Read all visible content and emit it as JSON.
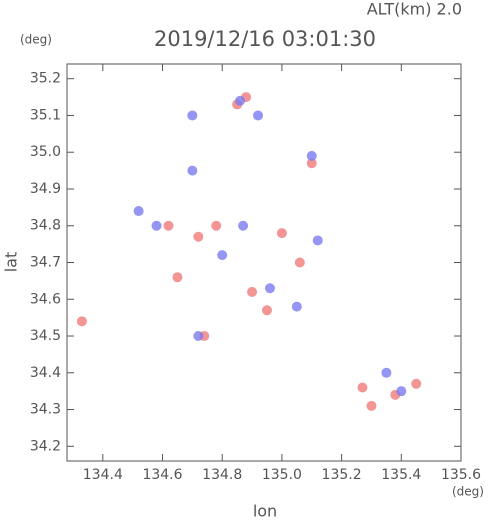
{
  "chart_data": {
    "type": "scatter",
    "title": "2019/12/16 03:01:30",
    "annotation": "ALT(km) 2.0",
    "y_unit": "(deg)",
    "x_unit": "(deg)",
    "xlabel": "lon",
    "ylabel": "lat",
    "xlim": [
      134.28,
      135.6
    ],
    "ylim": [
      34.16,
      35.24
    ],
    "xticks": [
      134.4,
      134.6,
      134.8,
      {
        "value": 135.0,
        "label": "135.0"
      },
      135.2,
      135.4,
      135.6
    ],
    "yticks": [
      34.2,
      34.3,
      34.4,
      34.5,
      34.6,
      34.7,
      34.8,
      34.9,
      {
        "value": 35.0,
        "label": "35.0"
      },
      35.1,
      35.2
    ],
    "series": [
      {
        "color": "#f07a7a",
        "x": [
          134.33,
          134.65,
          134.85,
          134.88,
          134.62,
          134.72,
          134.74,
          135.06,
          135.1,
          135.3,
          135.27,
          135.45,
          135.38,
          134.95,
          134.9,
          134.78,
          135.0
        ],
        "y": [
          34.54,
          34.66,
          35.13,
          35.15,
          34.8,
          34.77,
          34.5,
          34.7,
          34.97,
          34.31,
          34.36,
          34.37,
          34.34,
          34.57,
          34.62,
          34.8,
          34.78
        ]
      },
      {
        "color": "#7a7af0",
        "x": [
          134.52,
          134.7,
          134.86,
          134.92,
          135.1,
          134.58,
          134.8,
          134.96,
          135.05,
          134.72,
          135.35,
          135.4,
          134.87,
          135.12,
          134.7
        ],
        "y": [
          34.84,
          35.1,
          35.14,
          35.1,
          34.99,
          34.8,
          34.72,
          34.63,
          34.58,
          34.5,
          34.4,
          34.35,
          34.8,
          34.76,
          34.95
        ]
      }
    ]
  }
}
